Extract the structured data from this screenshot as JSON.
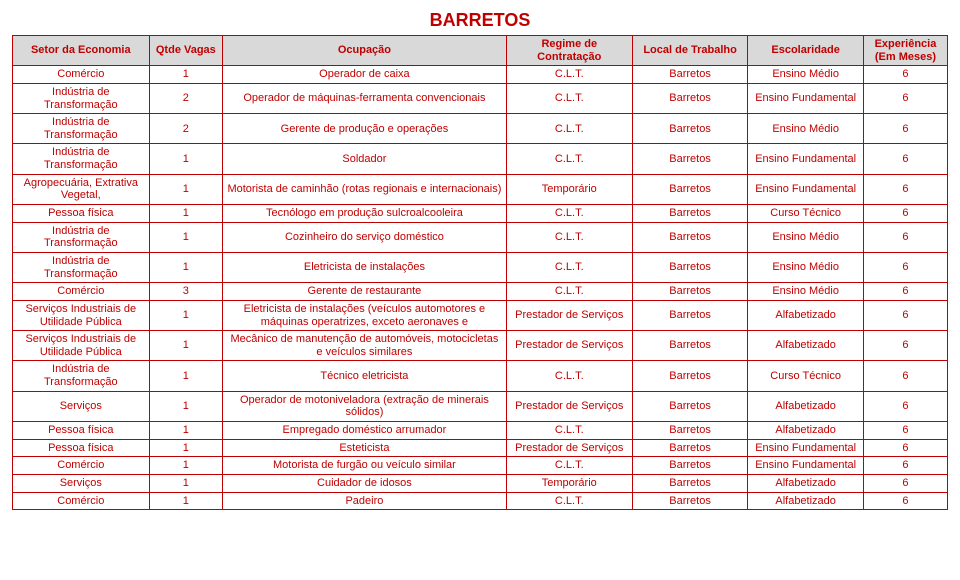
{
  "title": "BARRETOS",
  "headers": [
    "Setor da Economia",
    "Qtde Vagas",
    "Ocupação",
    "Regime de Contratação",
    "Local de Trabalho",
    "Escolaridade",
    "Experiência (Em Meses)"
  ],
  "rows": [
    [
      "Comércio",
      "1",
      "Operador de caixa",
      "C.L.T.",
      "Barretos",
      "Ensino Médio",
      "6"
    ],
    [
      "Indústria de Transformação",
      "2",
      "Operador de máquinas-ferramenta convencionais",
      "C.L.T.",
      "Barretos",
      "Ensino Fundamental",
      "6"
    ],
    [
      "Indústria de Transformação",
      "2",
      "Gerente de produção e operações",
      "C.L.T.",
      "Barretos",
      "Ensino Médio",
      "6"
    ],
    [
      "Indústria de Transformação",
      "1",
      "Soldador",
      "C.L.T.",
      "Barretos",
      "Ensino Fundamental",
      "6"
    ],
    [
      "Agropecuária, Extrativa Vegetal,",
      "1",
      "Motorista de caminhão (rotas regionais e internacionais)",
      "Temporário",
      "Barretos",
      "Ensino Fundamental",
      "6"
    ],
    [
      "Pessoa física",
      "1",
      "Tecnólogo em produção sulcroalcooleira",
      "C.L.T.",
      "Barretos",
      "Curso Técnico",
      "6"
    ],
    [
      "Indústria de Transformação",
      "1",
      "Cozinheiro do serviço doméstico",
      "C.L.T.",
      "Barretos",
      "Ensino Médio",
      "6"
    ],
    [
      "Indústria de Transformação",
      "1",
      "Eletricista de instalações",
      "C.L.T.",
      "Barretos",
      "Ensino Médio",
      "6"
    ],
    [
      "Comércio",
      "3",
      "Gerente de restaurante",
      "C.L.T.",
      "Barretos",
      "Ensino Médio",
      "6"
    ],
    [
      "Serviços Industriais de Utilidade Pública",
      "1",
      "Eletricista de instalações (veículos automotores e máquinas operatrizes, exceto aeronaves e",
      "Prestador de Serviços",
      "Barretos",
      "Alfabetizado",
      "6"
    ],
    [
      "Serviços Industriais de Utilidade Pública",
      "1",
      "Mecânico de manutenção de automóveis, motocicletas e veículos similares",
      "Prestador de Serviços",
      "Barretos",
      "Alfabetizado",
      "6"
    ],
    [
      "Indústria de Transformação",
      "1",
      "Técnico eletricista",
      "C.L.T.",
      "Barretos",
      "Curso Técnico",
      "6"
    ],
    [
      "Serviços",
      "1",
      "Operador de motoniveladora (extração de minerais sólidos)",
      "Prestador de Serviços",
      "Barretos",
      "Alfabetizado",
      "6"
    ],
    [
      "Pessoa física",
      "1",
      "Empregado doméstico  arrumador",
      "C.L.T.",
      "Barretos",
      "Alfabetizado",
      "6"
    ],
    [
      "Pessoa física",
      "1",
      "Esteticista",
      "Prestador de Serviços",
      "Barretos",
      "Ensino Fundamental",
      "6"
    ],
    [
      "Comércio",
      "1",
      "Motorista de furgão ou veículo similar",
      "C.L.T.",
      "Barretos",
      "Ensino Fundamental",
      "6"
    ],
    [
      "Serviços",
      "1",
      "Cuidador de idosos",
      "Temporário",
      "Barretos",
      "Alfabetizado",
      "6"
    ],
    [
      "Comércio",
      "1",
      "Padeiro",
      "C.L.T.",
      "Barretos",
      "Alfabetizado",
      "6"
    ]
  ]
}
